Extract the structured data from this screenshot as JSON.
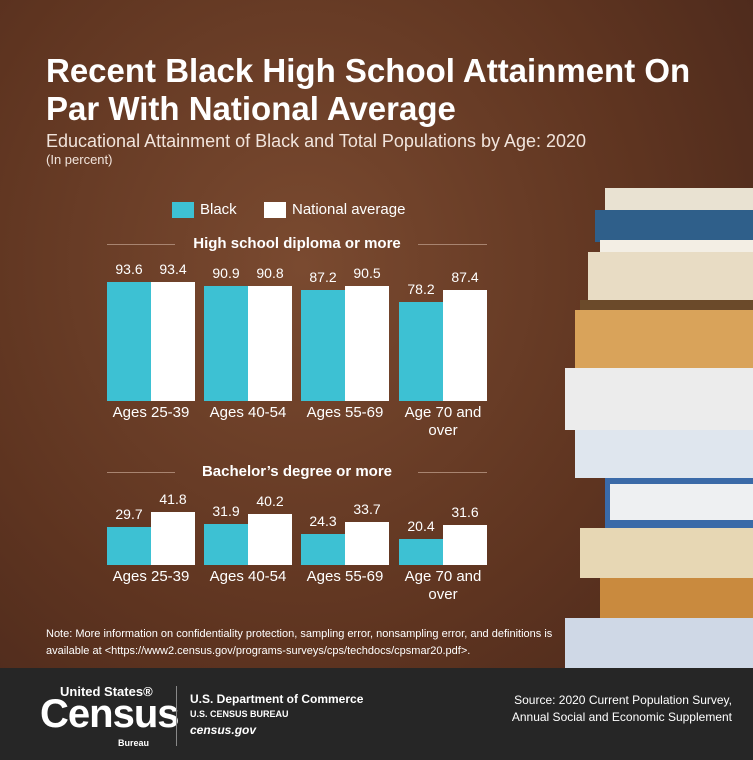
{
  "header": {
    "title": "Recent Black High School Attainment On Par With National Average",
    "subtitle": "Educational Attainment of Black and Total Populations by Age: 2020",
    "unit": "(In percent)"
  },
  "chart_data": {
    "type": "bar",
    "series": [
      {
        "name": "Black",
        "color": "#3dc1d3"
      },
      {
        "name": "National average",
        "color": "#ffffff"
      }
    ],
    "panels": [
      {
        "title": "High school diploma or more",
        "categories": [
          "Ages 25-39",
          "Ages 40-54",
          "Ages 55-69",
          "Age 70 and over"
        ],
        "values": [
          [
            93.6,
            90.9,
            87.2,
            78.2
          ],
          [
            93.4,
            90.8,
            90.5,
            87.4
          ]
        ]
      },
      {
        "title": "Bachelor’s degree or more",
        "categories": [
          "Ages 25-39",
          "Ages 40-54",
          "Ages 55-69",
          "Age 70 and over"
        ],
        "values": [
          [
            29.7,
            31.9,
            24.3,
            20.4
          ],
          [
            41.8,
            40.2,
            33.7,
            31.6
          ]
        ]
      }
    ]
  },
  "note": "Note: More information on confidentiality protection, sampling error, nonsampling error, and definitions is available at <https://www2.census.gov/programs-surveys/cps/techdocs/cpsmar20.pdf>.",
  "footer": {
    "logo_top": "United States®",
    "logo_main": "Census",
    "logo_bottom": "Bureau",
    "department": "U.S. Department of Commerce",
    "bureau": "U.S. CENSUS BUREAU",
    "site": "census.gov",
    "source": "Source: 2020 Current Population Survey, Annual Social and Economic Supplement"
  }
}
